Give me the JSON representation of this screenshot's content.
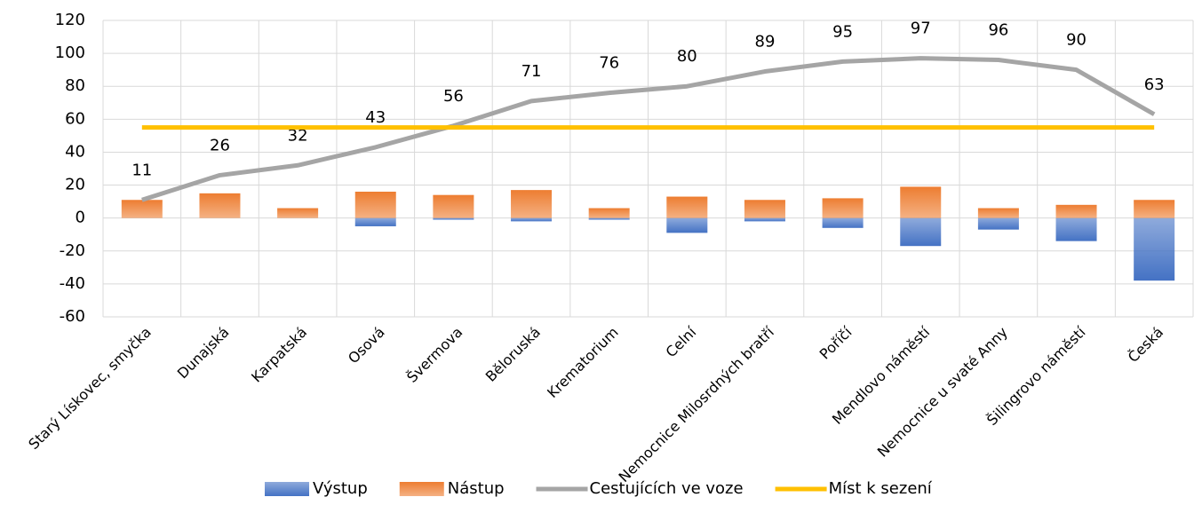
{
  "chart_data": {
    "type": "bar-line",
    "categories": [
      "Starý Lískovec, smyčka",
      "Dunajská",
      "Karpatská",
      "Osová",
      "Švermova",
      "Běloruská",
      "Krematorium",
      "Celní",
      "Nemocnice Milosrdných bratří",
      "Poříčí",
      "Mendlovo náměstí",
      "Nemocnice u svaté Anny",
      "Šilingrovo náměstí",
      "Česká"
    ],
    "series": [
      {
        "name": "Výstup",
        "type": "bar",
        "color": "#4472c4",
        "values": [
          0,
          0,
          0,
          -5,
          -1,
          -2,
          -1,
          -9,
          -2,
          -6,
          -17,
          -7,
          -14,
          -38
        ]
      },
      {
        "name": "Nástup",
        "type": "bar",
        "color": "#ed7d31",
        "values": [
          11,
          15,
          6,
          16,
          14,
          17,
          6,
          13,
          11,
          12,
          19,
          6,
          8,
          11
        ]
      },
      {
        "name": "Cestujících ve voze",
        "type": "line",
        "color": "#a5a5a5",
        "data_labels": true,
        "values": [
          11,
          26,
          32,
          43,
          56,
          71,
          76,
          80,
          89,
          95,
          97,
          96,
          90,
          63
        ]
      },
      {
        "name": "Míst k sezení",
        "type": "line",
        "color": "#ffc000",
        "values": [
          55,
          55,
          55,
          55,
          55,
          55,
          55,
          55,
          55,
          55,
          55,
          55,
          55,
          55
        ]
      }
    ],
    "ylim": [
      -60,
      120
    ],
    "yticks": [
      -60,
      -40,
      -20,
      0,
      20,
      40,
      60,
      80,
      100,
      120
    ],
    "grid": true,
    "legend": "bottom"
  }
}
